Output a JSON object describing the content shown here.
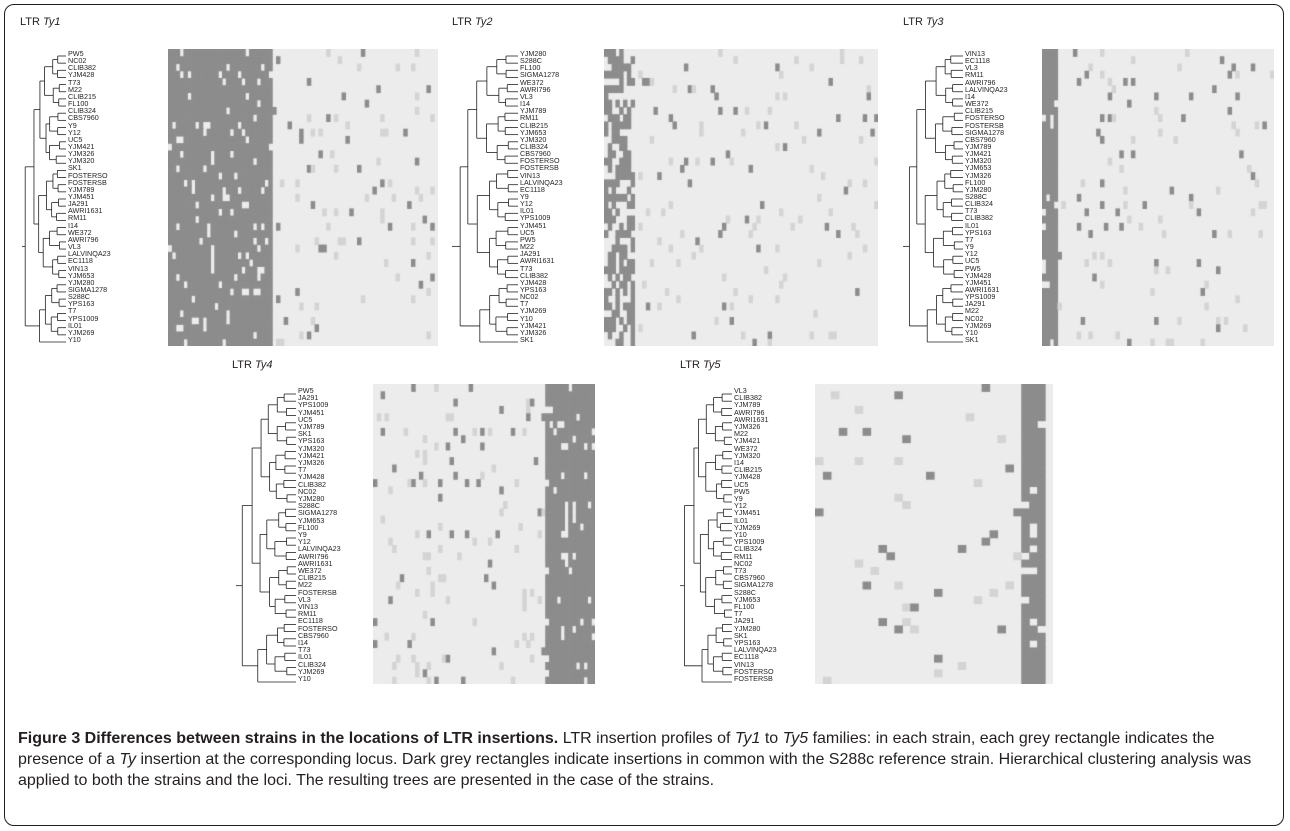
{
  "panels": [
    {
      "id": "ty1",
      "title_prefix": "LTR ",
      "title_family": "Ty1",
      "dark_band": [
        0.0,
        0.38
      ],
      "dark_style": "solid",
      "strains": [
        "PW5",
        "NC02",
        "CLIB382",
        "YJM428",
        "T73",
        "M22",
        "CLIB215",
        "FL100",
        "CLIB324",
        "CBS7960",
        "Y9",
        "Y12",
        "UC5",
        "YJM421",
        "YJM326",
        "YJM320",
        "SK1",
        "FOSTERSO",
        "FOSTERSB",
        "YJM789",
        "YJM451",
        "JA291",
        "AWRI1631",
        "RM11",
        "I14",
        "WE372",
        "AWRI796",
        "VL3",
        "LALVINQA23",
        "EC1118",
        "VIN13",
        "YJM653",
        "YJM280",
        "SIGMA1278",
        "S288C",
        "YPS163",
        "T7",
        "YPS1009",
        "IL01",
        "YJM269",
        "Y10"
      ]
    },
    {
      "id": "ty2",
      "title_prefix": "LTR ",
      "title_family": "Ty2",
      "dark_band": [
        0.0,
        0.1
      ],
      "dark_style": "stripes",
      "strains": [
        "YJM280",
        "S288C",
        "FL100",
        "SIGMA1278",
        "WE372",
        "AWRI796",
        "VL3",
        "I14",
        "YJM789",
        "RM11",
        "CLIB215",
        "YJM653",
        "YJM320",
        "CLIB324",
        "CBS7960",
        "FOSTERSO",
        "FOSTERSB",
        "VIN13",
        "LALVINQA23",
        "EC1118",
        "Y9",
        "Y12",
        "IL01",
        "YPS1009",
        "YJM451",
        "UC5",
        "PW5",
        "M22",
        "JA291",
        "AWRI1631",
        "T73",
        "CLIB382",
        "YJM428",
        "YPS163",
        "NC02",
        "T7",
        "YJM269",
        "Y10",
        "YJM421",
        "YJM326",
        "SK1"
      ]
    },
    {
      "id": "ty3",
      "title_prefix": "LTR ",
      "title_family": "Ty3",
      "dark_band": [
        0.0,
        0.06
      ],
      "dark_style": "solid",
      "strains": [
        "VIN13",
        "EC1118",
        "VL3",
        "RM11",
        "AWRI796",
        "LALVINQA23",
        "I14",
        "WE372",
        "CLIB215",
        "FOSTERSO",
        "FOSTERSB",
        "SIGMA1278",
        "CBS7960",
        "YJM789",
        "YJM421",
        "YJM320",
        "YJM653",
        "YJM326",
        "FL100",
        "YJM280",
        "S288C",
        "CLIB324",
        "T73",
        "CLIB382",
        "IL01",
        "YPS163",
        "T7",
        "Y9",
        "Y12",
        "UC5",
        "PW5",
        "YJM428",
        "YJM451",
        "AWRI1631",
        "YPS1009",
        "JA291",
        "M22",
        "NC02",
        "YJM269",
        "Y10",
        "SK1"
      ]
    },
    {
      "id": "ty4",
      "title_prefix": "LTR ",
      "title_family": "Ty4",
      "dark_band": [
        0.78,
        1.0
      ],
      "dark_style": "solid",
      "strains": [
        "PW5",
        "JA291",
        "YPS1009",
        "YJM451",
        "UC5",
        "YJM789",
        "SK1",
        "YPS163",
        "YJM320",
        "YJM421",
        "YJM326",
        "T7",
        "YJM428",
        "CLIB382",
        "NC02",
        "YJM280",
        "S288C",
        "SIGMA1278",
        "YJM653",
        "FL100",
        "Y9",
        "Y12",
        "LALVINQA23",
        "AWRI796",
        "AWRI1631",
        "WE372",
        "CLIB215",
        "M22",
        "FOSTERSB",
        "VL3",
        "VIN13",
        "RM11",
        "EC1118",
        "FOSTERSO",
        "CBS7960",
        "I14",
        "T73",
        "IL01",
        "CLIB324",
        "YJM269",
        "Y10"
      ]
    },
    {
      "id": "ty5",
      "title_prefix": "LTR ",
      "title_family": "Ty5",
      "dark_band": [
        0.89,
        0.96
      ],
      "dark_style": "solid",
      "strains": [
        "VL3",
        "CLIB382",
        "YJM789",
        "AWRI796",
        "AWRI1631",
        "YJM326",
        "M22",
        "YJM421",
        "WE372",
        "YJM320",
        "I14",
        "CLIB215",
        "YJM428",
        "UC5",
        "PW5",
        "Y9",
        "Y12",
        "YJM451",
        "IL01",
        "YJM269",
        "Y10",
        "YPS1009",
        "CLIB324",
        "RM11",
        "NC02",
        "T73",
        "CBS7960",
        "SIGMA1278",
        "S288C",
        "YJM653",
        "FL100",
        "T7",
        "JA291",
        "YJM280",
        "SK1",
        "YPS163",
        "LALVINQA23",
        "EC1118",
        "VIN13",
        "FOSTERSO",
        "FOSTERSB"
      ]
    }
  ],
  "colors": {
    "dark": "#8c8c8c",
    "light": "#d4d4d4",
    "background": "#ececec",
    "line": "#231f20"
  },
  "caption": {
    "label": "Figure 3 Differences between strains in the locations of LTR insertions.",
    "t1": " LTR insertion profiles of ",
    "ty1": "Ty1",
    "t2": " to ",
    "ty5": "Ty5",
    "t3": " families: in each strain, each grey rectangle indicates the presence of a ",
    "ty": "Ty",
    "t4": " insertion at the corresponding locus. Dark grey rectangles indicate insertions in common with the S288c reference strain. Hierarchical clustering analysis was applied to both the strains and the loci. The resulting trees are presented in the case of the strains."
  }
}
